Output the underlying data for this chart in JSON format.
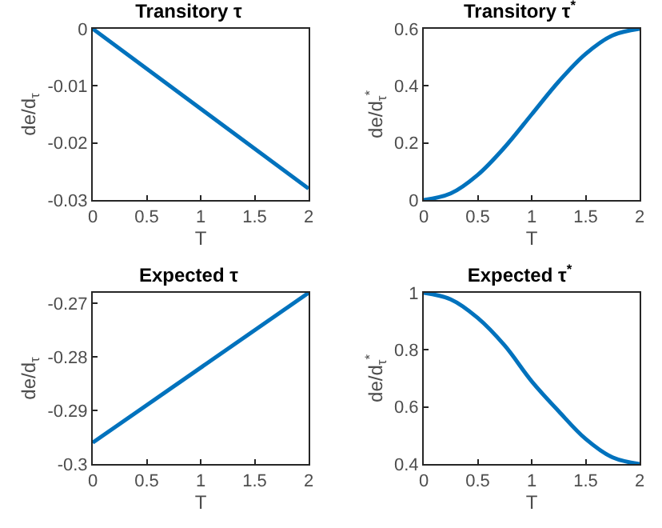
{
  "chart_data": [
    {
      "type": "line",
      "title": "Transitory τ",
      "xlabel": "T",
      "ylabel": "de/d$_{τ}$",
      "x": [
        0,
        2
      ],
      "series": [
        {
          "color": "#0072bd",
          "values": [
            0,
            -0.028
          ]
        }
      ],
      "xlim": [
        0,
        2
      ],
      "xticks": [
        0,
        0.5,
        1,
        1.5,
        2
      ],
      "ylim": [
        -0.03,
        0
      ],
      "yticks": [
        -0.03,
        -0.02,
        -0.01,
        0
      ],
      "grid": false,
      "marker": "none",
      "line_style": "solid"
    },
    {
      "type": "line",
      "title": "Transitory τ$^{*}$",
      "xlabel": "T",
      "ylabel": "de/d$_{τ}$$^{*}$",
      "x": [
        0,
        0.25,
        0.5,
        0.75,
        1,
        1.25,
        1.5,
        1.75,
        2
      ],
      "series": [
        {
          "color": "#0072bd",
          "values": [
            0,
            0.023,
            0.088,
            0.185,
            0.3,
            0.415,
            0.512,
            0.577,
            0.6
          ]
        }
      ],
      "xlim": [
        0,
        2
      ],
      "xticks": [
        0,
        0.5,
        1,
        1.5,
        2
      ],
      "ylim": [
        0,
        0.6
      ],
      "yticks": [
        0,
        0.2,
        0.4,
        0.6
      ],
      "grid": false,
      "marker": "none",
      "line_style": "solid"
    },
    {
      "type": "line",
      "title": "Expected τ",
      "xlabel": "T",
      "ylabel": "de/d$_{τ}$",
      "x": [
        0,
        2
      ],
      "series": [
        {
          "color": "#0072bd",
          "values": [
            -0.296,
            -0.268
          ]
        }
      ],
      "xlim": [
        0,
        2
      ],
      "xticks": [
        0,
        0.5,
        1,
        1.5,
        2
      ],
      "ylim": [
        -0.3,
        -0.268
      ],
      "yticks": [
        -0.3,
        -0.29,
        -0.28,
        -0.27
      ],
      "grid": false,
      "marker": "none",
      "line_style": "solid"
    },
    {
      "type": "line",
      "title": "Expected τ$^{*}$",
      "xlabel": "T",
      "ylabel": "de/d$_{τ}$$^{*}$",
      "x": [
        0,
        0.25,
        0.5,
        0.75,
        1,
        1.25,
        1.5,
        1.75,
        2
      ],
      "series": [
        {
          "color": "#0072bd",
          "values": [
            1,
            0.977,
            0.912,
            0.815,
            0.69,
            0.585,
            0.488,
            0.423,
            0.4
          ]
        }
      ],
      "xlim": [
        0,
        2
      ],
      "xticks": [
        0,
        0.5,
        1,
        1.5,
        2
      ],
      "ylim": [
        0.4,
        1
      ],
      "yticks": [
        0.4,
        0.6,
        0.8,
        1
      ],
      "grid": false,
      "marker": "none",
      "line_style": "solid"
    }
  ]
}
